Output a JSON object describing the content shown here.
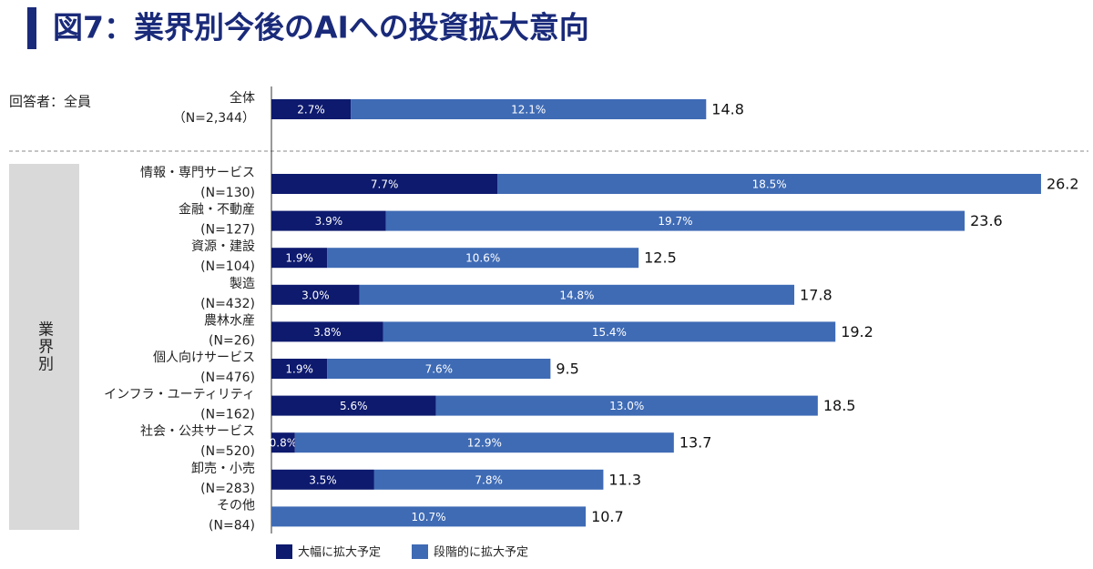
{
  "chart_data": {
    "type": "stacked-bar",
    "title": "図7：業界別今後のAIへの投資拡大意向",
    "group_label": "回答者：全員",
    "section_label": "業界別",
    "categories": [
      "全体",
      "情報・専門サービス",
      "金融・不動産",
      "資源・建設",
      "製造",
      "農林水産",
      "個人向けサービス",
      "インフラ・ユーティリティ",
      "社会・公共サービス",
      "卸売・小売",
      "その他"
    ],
    "sample_sizes": [
      "（N=2,344）",
      "(N=130)",
      "(N=127)",
      "(N=104)",
      "(N=432)",
      "(N=26)",
      "(N=476)",
      "(N=162)",
      "(N=520)",
      "(N=283)",
      "(N=84)"
    ],
    "series": [
      {
        "name": "大幅に拡大予定",
        "color": "#0d1a6e",
        "values": [
          2.7,
          7.7,
          3.9,
          1.9,
          3.0,
          3.8,
          1.9,
          5.6,
          0.8,
          3.5,
          null
        ],
        "value_labels": [
          "2.7%",
          "7.7%",
          "3.9%",
          "1.9%",
          "3.0%",
          "3.8%",
          "1.9%",
          "5.6%",
          "0.8%",
          "3.5%",
          null
        ]
      },
      {
        "name": "段階的に拡大予定",
        "color": "#3f6bb5",
        "values": [
          12.1,
          18.5,
          19.7,
          10.6,
          14.8,
          15.4,
          7.6,
          13.0,
          12.9,
          7.8,
          10.7
        ],
        "value_labels": [
          "12.1%",
          "18.5%",
          "19.7%",
          "10.6%",
          "14.8%",
          "15.4%",
          "7.6%",
          "13.0%",
          "12.9%",
          "7.8%",
          "10.7%"
        ]
      }
    ],
    "totals": [
      14.8,
      26.2,
      23.6,
      12.5,
      17.8,
      19.2,
      9.5,
      18.5,
      13.7,
      11.3,
      10.7
    ]
  }
}
